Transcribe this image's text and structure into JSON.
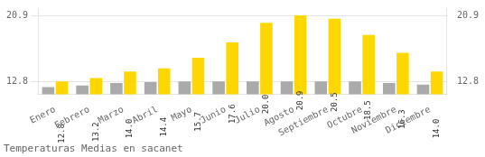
{
  "chart_data": {
    "type": "bar",
    "title": "Temperaturas Medias en sacanet",
    "categories": [
      "Enero",
      "Febrero",
      "Marzo",
      "Abril",
      "Mayo",
      "Junio",
      "Julio",
      "Agosto",
      "Septiembre",
      "Octubre",
      "Noviembre",
      "Diciembre"
    ],
    "series": [
      {
        "color": "#AAAAAA",
        "values": [
          12.1,
          12.3,
          12.6,
          12.7,
          12.8,
          12.8,
          12.8,
          12.8,
          12.8,
          12.8,
          12.6,
          12.4
        ]
      },
      {
        "color": "#FFD700",
        "values": [
          12.8,
          13.2,
          14.0,
          14.4,
          15.7,
          17.6,
          20.0,
          20.9,
          20.5,
          18.5,
          16.3,
          14.0
        ],
        "data_labels": true,
        "value_labels": [
          "12.8",
          "13.2",
          "14.0",
          "14.4",
          "15.7",
          "17.6",
          "20.0",
          "20.9",
          "20.5",
          "18.5",
          "16.3",
          "14.0"
        ]
      }
    ],
    "ylim": [
      11.2,
      21.8
    ],
    "yticks": [
      12.8,
      20.9
    ],
    "y2lim": [
      11.2,
      21.8
    ],
    "y2ticks": [
      12.8,
      20.9
    ],
    "grid": true
  }
}
